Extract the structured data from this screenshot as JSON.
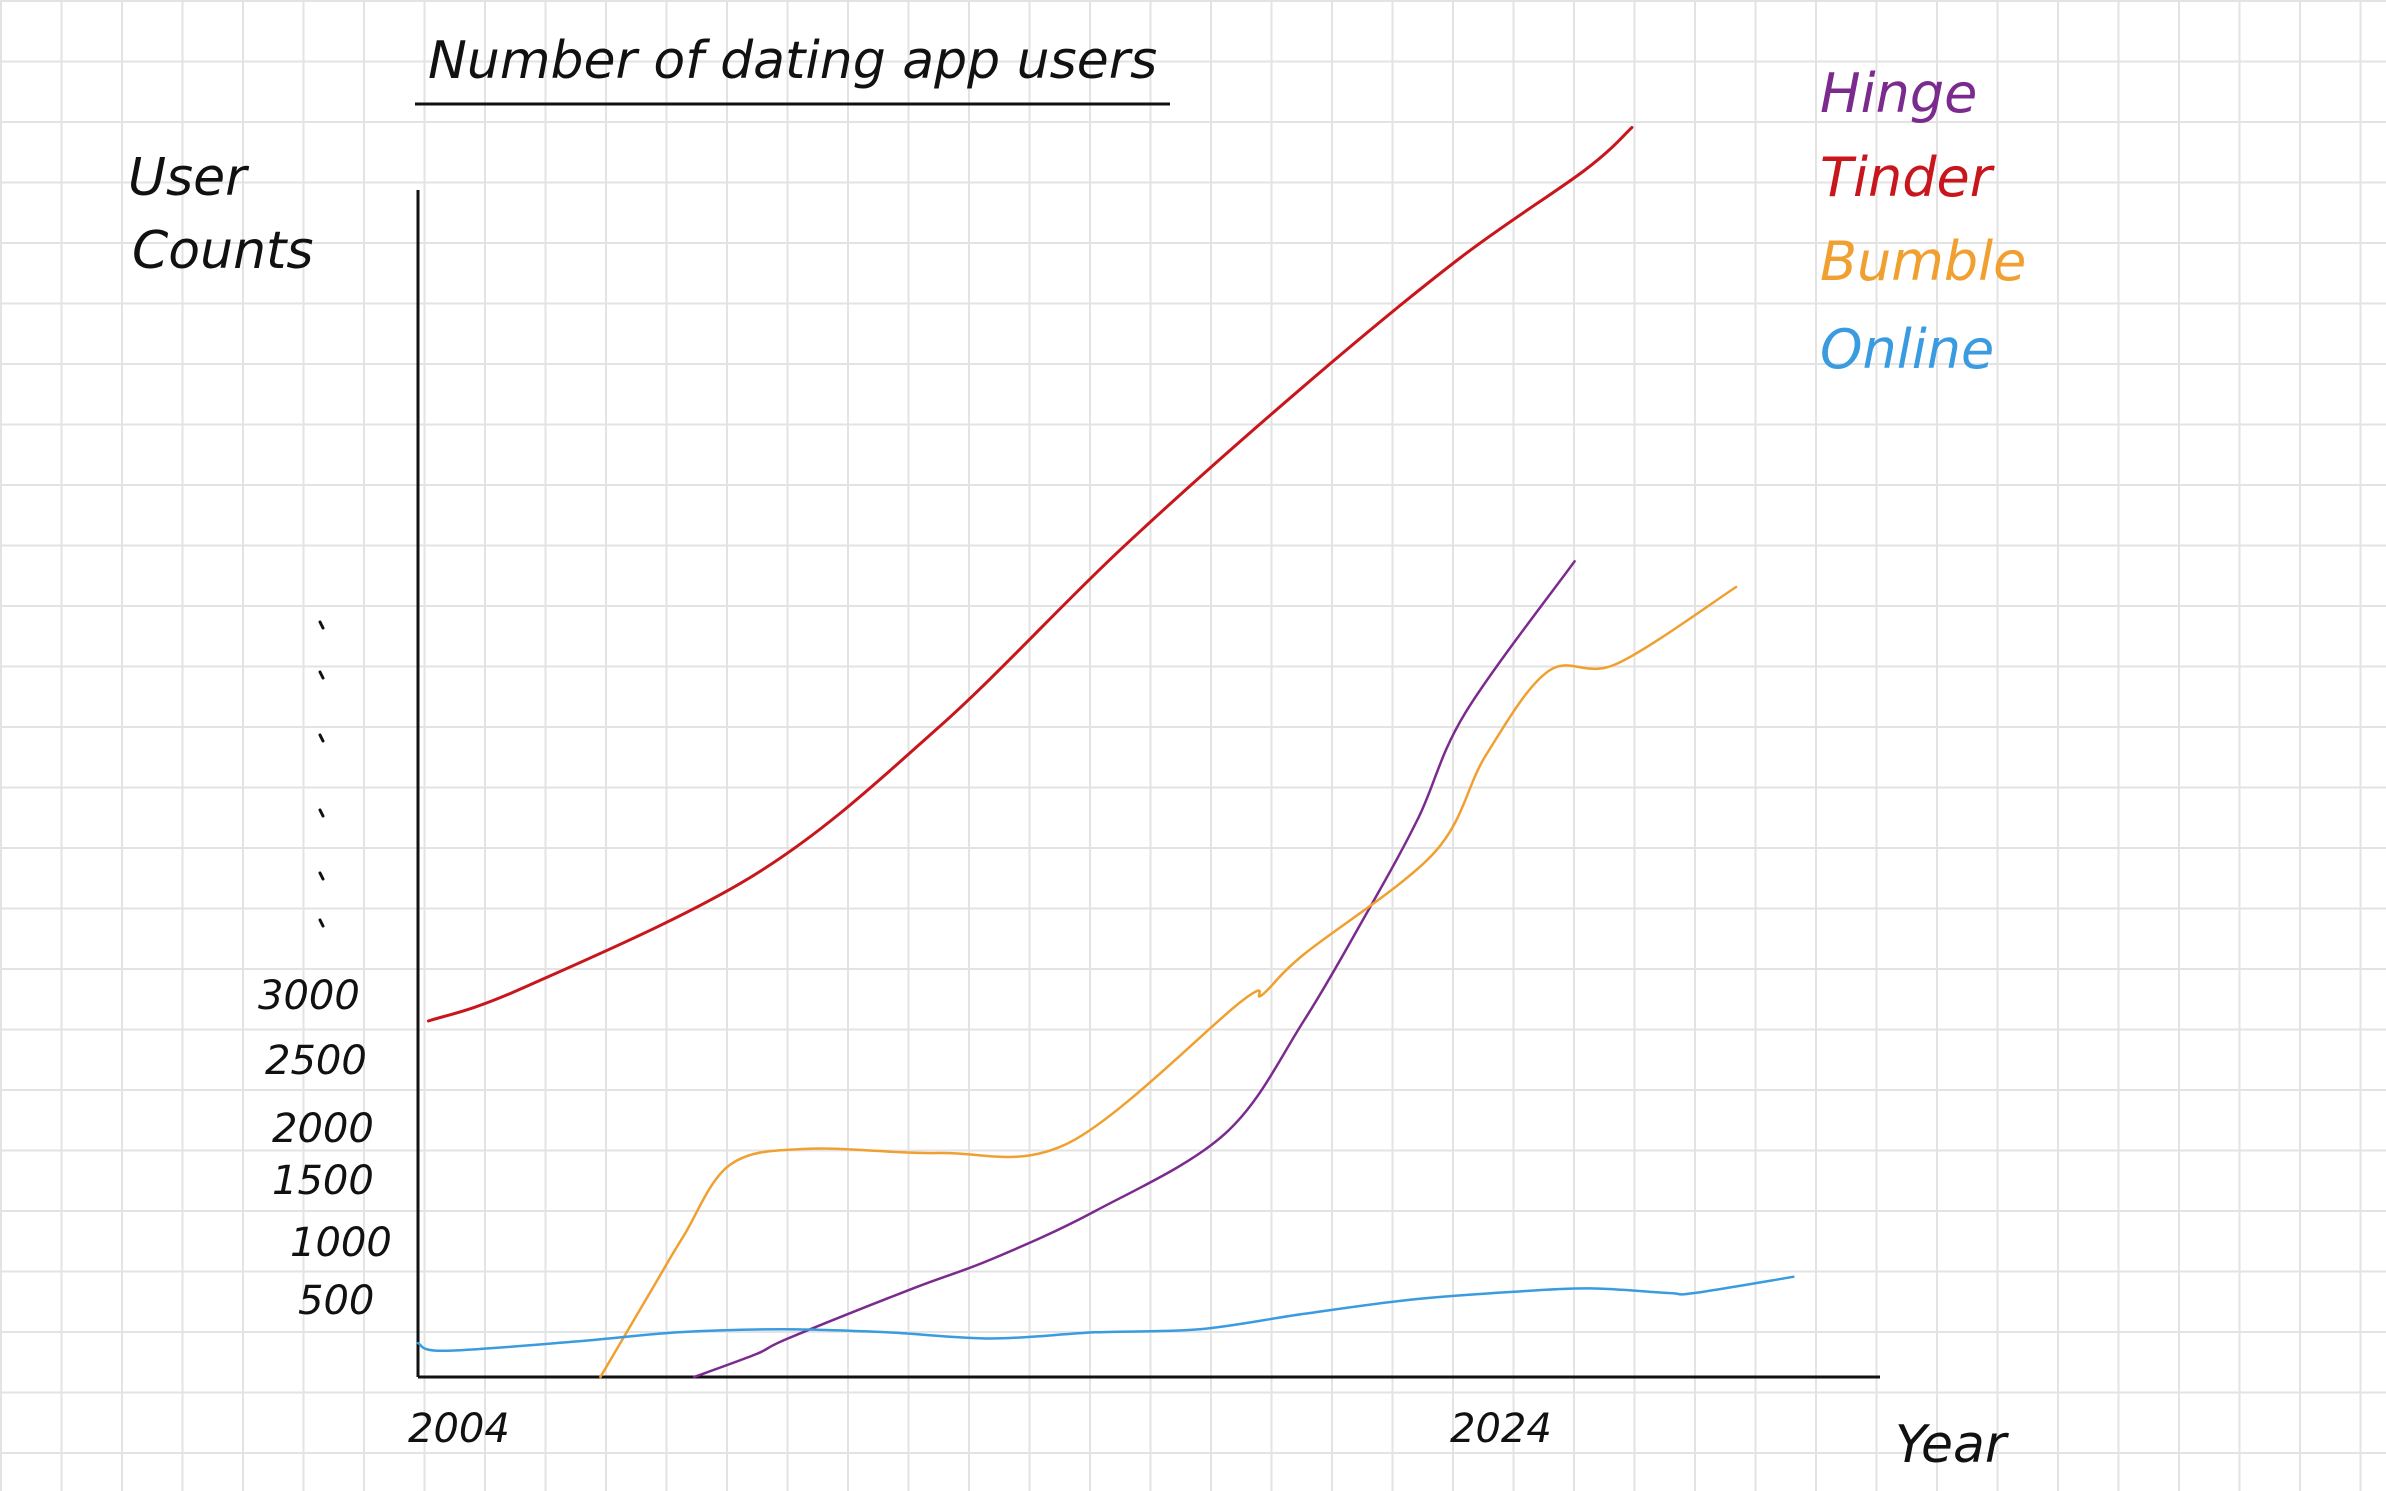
{
  "chart_data": {
    "type": "line",
    "title": "Number of dating app users",
    "ylabel": "User Counts",
    "xlabel": "Year",
    "x_ticks": [
      "2004",
      "2024"
    ],
    "y_ticks": [
      500,
      1000,
      1500,
      2000,
      2500,
      3000
    ],
    "y_break_marks": true,
    "grid": "on",
    "legend_placement": "top-right",
    "series": [
      {
        "name": "Hinge",
        "color": "#7b2a8e",
        "x": [
          2009.3,
          2010.5,
          2011.1,
          2013.5,
          2015.0,
          2017.0,
          2019.5,
          2021.0,
          2022.2,
          2023.2,
          2024.1,
          2026.2
        ],
        "y": [
          0,
          150,
          250,
          600,
          850,
          1250,
          1950,
          2800,
          3600,
          4300,
          5050,
          6150
        ]
      },
      {
        "name": "Tinder",
        "color": "#c8161d",
        "x": [
          2004.2,
          2006.0,
          2010.5,
          2014.0,
          2017.5,
          2021.0,
          2024.0,
          2026.4,
          2027.3
        ],
        "y": [
          2800,
          3050,
          3900,
          4950,
          6250,
          7550,
          8900,
          10000,
          10850
        ]
      },
      {
        "name": "Bumble",
        "color": "#f0a030",
        "x": [
          2007.5,
          2008.5,
          2009.1,
          2010.0,
          2011.5,
          2014.0,
          2016.5,
          2019.8,
          2020.2,
          2021.0,
          2023.5,
          2024.5,
          2025.7,
          2027.0,
          2029.3
        ],
        "y": [
          0,
          600,
          1050,
          1650,
          1800,
          1760,
          1860,
          2950,
          3000,
          3300,
          4050,
          4750,
          5350,
          5400,
          5950
        ]
      },
      {
        "name": "Online",
        "color": "#3a9be0",
        "x": [
          2004.0,
          2004.5,
          2007.0,
          2009.0,
          2011.0,
          2013.0,
          2015.0,
          2017.0,
          2019.0,
          2021.0,
          2023.0,
          2025.0,
          2026.5,
          2028.0,
          2028.5,
          2030.4
        ],
        "y": [
          220,
          170,
          230,
          290,
          310,
          290,
          250,
          290,
          310,
          410,
          500,
          570,
          600,
          560,
          560,
          700
        ]
      }
    ]
  }
}
